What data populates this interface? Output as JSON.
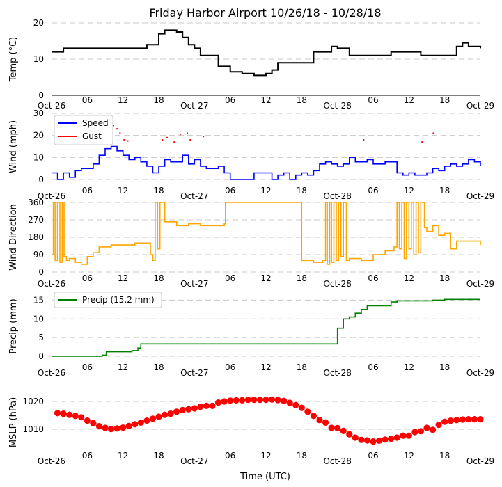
{
  "title": "Friday Harbor Airport 10/26/18 - 10/28/18",
  "xlabel": "Time (UTC)",
  "x_tick_labels": [
    "Oct-26",
    "06",
    "12",
    "18",
    "Oct-27",
    "06",
    "12",
    "18",
    "Oct-28",
    "06",
    "12",
    "18",
    "Oct-29"
  ],
  "colors": {
    "temp": "#000000",
    "speed": "#0000ff",
    "gust": "#ff0000",
    "direction": "#ffa500",
    "precip": "#008000",
    "mslp": "#ff0000"
  },
  "chart_data": [
    {
      "name": "temp",
      "type": "line",
      "ylabel": "Temp (°C)",
      "ylim": [
        0,
        20
      ],
      "yticks": [
        "0",
        "10",
        "20"
      ],
      "x_hours": [
        0,
        1.5,
        2,
        3,
        8,
        12,
        15,
        16,
        18,
        19,
        21,
        22,
        23,
        24,
        25,
        27,
        28,
        30,
        32,
        34,
        36,
        37,
        38,
        40,
        42,
        44,
        47,
        48,
        50,
        54,
        57,
        58,
        60,
        62,
        63,
        66,
        67,
        68,
        69,
        70,
        72
      ],
      "series": [
        {
          "name": "Temp",
          "values": [
            12,
            12,
            13,
            13,
            13,
            13,
            13,
            14,
            17,
            18,
            17.5,
            16,
            14,
            13,
            11,
            11,
            8,
            6.5,
            6,
            5.5,
            6,
            7,
            9,
            9,
            9,
            12,
            13.5,
            13,
            11,
            11,
            12,
            12,
            12,
            11,
            11,
            11,
            11,
            13.5,
            14.5,
            13.5,
            13
          ]
        }
      ]
    },
    {
      "name": "wind",
      "type": "line",
      "ylabel": "Wind (mph)",
      "ylim": [
        0,
        30
      ],
      "yticks": [
        "0",
        "10",
        "20",
        "30"
      ],
      "legend": [
        "Speed",
        "Gust"
      ],
      "x_hours": [
        0,
        1,
        2,
        3,
        4,
        5,
        6,
        7,
        8,
        9,
        10,
        11,
        12,
        13,
        14,
        15,
        16,
        17,
        18,
        19,
        20,
        21,
        22,
        23,
        24,
        25,
        26,
        27,
        28,
        29,
        30,
        31,
        32,
        33,
        34,
        35,
        36,
        37,
        38,
        39,
        40,
        41,
        42,
        43,
        44,
        45,
        46,
        47,
        48,
        49,
        50,
        51,
        52,
        53,
        54,
        55,
        56,
        57,
        58,
        59,
        60,
        61,
        62,
        63,
        64,
        65,
        66,
        67,
        68,
        69,
        70,
        71,
        72
      ],
      "series": [
        {
          "name": "Speed",
          "values": [
            3,
            0,
            3,
            1,
            4,
            5,
            5,
            7,
            11,
            14,
            15,
            13,
            11,
            9,
            10,
            8,
            6,
            3,
            6,
            9,
            8,
            8,
            11,
            7,
            9,
            6,
            5,
            5,
            6,
            3,
            0,
            0,
            0,
            0,
            3,
            3,
            3,
            0,
            2,
            3,
            0,
            2,
            3,
            2,
            4,
            7,
            8,
            7,
            6,
            7,
            10,
            8,
            8,
            9,
            7,
            7,
            8,
            8,
            3,
            2,
            3,
            2,
            2,
            3,
            5,
            4,
            6,
            7,
            6,
            7,
            9,
            8,
            6
          ]
        },
        {
          "name": "Gust",
          "points": [
            [
              9.8,
              22
            ],
            [
              10.4,
              24.5
            ],
            [
              11.0,
              23
            ],
            [
              11.5,
              21
            ],
            [
              12.2,
              18
            ],
            [
              12.8,
              17.5
            ],
            [
              18.6,
              18
            ],
            [
              19.4,
              19
            ],
            [
              20.6,
              17
            ],
            [
              21.6,
              20.5
            ],
            [
              22.8,
              21
            ],
            [
              23.3,
              18
            ],
            [
              25.5,
              19.5
            ],
            [
              52.4,
              18
            ],
            [
              62.2,
              17
            ],
            [
              64.1,
              21
            ]
          ]
        }
      ]
    },
    {
      "name": "direction",
      "type": "line",
      "ylabel": "Wind Direction",
      "ylim": [
        0,
        360
      ],
      "yticks": [
        "0",
        "90",
        "180",
        "270",
        "360"
      ],
      "x_hours": [
        0,
        0.3,
        0.6,
        1.0,
        1.4,
        1.8,
        2.1,
        2.5,
        3,
        4,
        5,
        6,
        7,
        8,
        10,
        12,
        14,
        16,
        16.6,
        17,
        17.4,
        17.8,
        18.2,
        19,
        21,
        23,
        25,
        27,
        29,
        29.2,
        31,
        33,
        35,
        37,
        39,
        41,
        41.8,
        42,
        44,
        45.5,
        46,
        46.3,
        46.7,
        47,
        47.4,
        47.8,
        48.2,
        48.6,
        49,
        49.5,
        50,
        52,
        54,
        56,
        57.5,
        58,
        58.4,
        58.8,
        59.2,
        59.6,
        60,
        60.4,
        60.8,
        61.2,
        61.6,
        62,
        62.6,
        63,
        64,
        65,
        66,
        67,
        68,
        70,
        72
      ],
      "series": [
        {
          "name": "Direction",
          "values": [
            90,
            360,
            60,
            360,
            50,
            360,
            80,
            60,
            70,
            50,
            40,
            80,
            100,
            130,
            140,
            140,
            150,
            150,
            90,
            60,
            360,
            120,
            360,
            260,
            240,
            250,
            240,
            240,
            250,
            360,
            360,
            360,
            360,
            360,
            360,
            360,
            360,
            60,
            50,
            60,
            360,
            40,
            360,
            50,
            360,
            60,
            360,
            80,
            360,
            60,
            70,
            60,
            90,
            110,
            130,
            360,
            120,
            360,
            70,
            360,
            120,
            360,
            90,
            360,
            100,
            360,
            230,
            210,
            240,
            190,
            200,
            120,
            160,
            160,
            140
          ]
        }
      ]
    },
    {
      "name": "precip",
      "type": "line",
      "ylabel": "Precip (mm)",
      "ylim": [
        0,
        16
      ],
      "yticks": [
        "0",
        "5",
        "10",
        "15"
      ],
      "legend": [
        "Precip (15.2 mm)"
      ],
      "x_hours": [
        0,
        7.5,
        8.5,
        9.2,
        12,
        13.5,
        14.5,
        15,
        20,
        30,
        40,
        47,
        48,
        49,
        50,
        51,
        52,
        53,
        54,
        55,
        57,
        58,
        60,
        64,
        66,
        70,
        72
      ],
      "series": [
        {
          "name": "Precip",
          "values": [
            0,
            0,
            0.3,
            1.2,
            1.2,
            1.5,
            2.2,
            3.3,
            3.3,
            3.3,
            3.3,
            3.3,
            7.5,
            10,
            10.5,
            11.5,
            12.5,
            13.5,
            13.5,
            13.5,
            14.5,
            14.8,
            14.8,
            15,
            15.2,
            15.2,
            15.2
          ]
        }
      ]
    },
    {
      "name": "mslp",
      "type": "scatter",
      "ylabel": "MSLP (hPa)",
      "ylim": [
        1000,
        1025
      ],
      "yticks": [
        "1010",
        "1020"
      ],
      "x_hours": [
        1,
        2,
        3,
        4,
        5,
        6,
        7,
        8,
        9,
        10,
        11,
        12,
        13,
        14,
        15,
        16,
        17,
        18,
        19,
        20,
        21,
        22,
        23,
        24,
        25,
        26,
        27,
        28,
        29,
        30,
        31,
        32,
        33,
        34,
        35,
        36,
        37,
        38,
        39,
        40,
        41,
        42,
        43,
        44,
        45,
        46,
        47,
        48,
        49,
        50,
        51,
        52,
        53,
        54,
        55,
        56,
        57,
        58,
        59,
        60,
        61,
        62,
        63,
        64,
        65,
        66,
        67,
        68,
        69,
        70,
        71,
        72
      ],
      "series": [
        {
          "name": "MSLP",
          "values": [
            1015.8,
            1015.6,
            1015.2,
            1014.8,
            1014.3,
            1013.1,
            1012.2,
            1011.1,
            1010.5,
            1010.1,
            1010.3,
            1010.6,
            1011.2,
            1011.8,
            1012.4,
            1013.1,
            1013.8,
            1014.5,
            1015.2,
            1015.6,
            1016.3,
            1016.9,
            1017.2,
            1017.5,
            1018.1,
            1018.4,
            1018.4,
            1019.6,
            1020.0,
            1020.3,
            1020.4,
            1020.4,
            1020.6,
            1020.6,
            1020.6,
            1020.6,
            1020.7,
            1020.5,
            1020.2,
            1019.5,
            1018.7,
            1017.7,
            1016.3,
            1014.8,
            1013.3,
            1012.4,
            1010.5,
            1010.4,
            1009.4,
            1008.2,
            1007.0,
            1006.2,
            1006.0,
            1005.6,
            1005.9,
            1006.3,
            1006.6,
            1007.0,
            1007.7,
            1007.7,
            1009.0,
            1009.3,
            1010.5,
            1009.8,
            1011.6,
            1012.7,
            1013.1,
            1013.3,
            1013.5,
            1013.6,
            1013.6,
            1013.6
          ]
        }
      ]
    }
  ]
}
